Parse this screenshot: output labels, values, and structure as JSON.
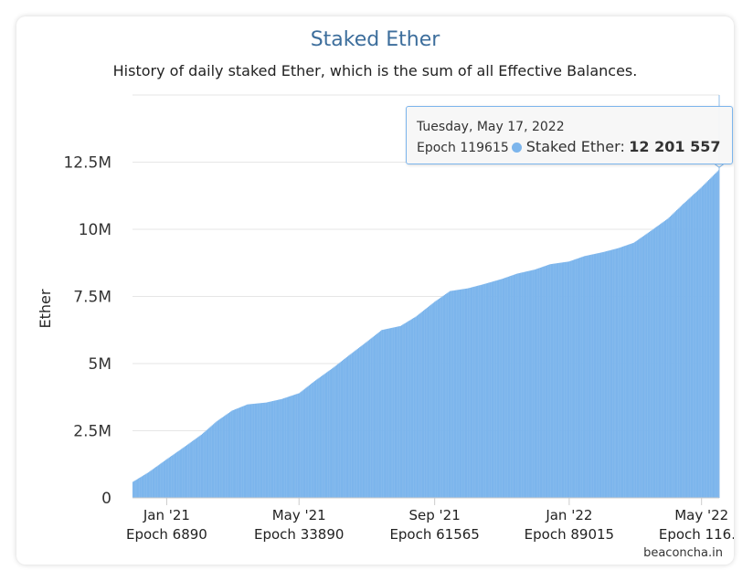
{
  "chart": {
    "title": "Staked Ether",
    "subtitle": "History of daily staked Ether, which is the sum of all Effective Balances.",
    "credit": "beaconcha.in"
  },
  "tooltip": {
    "date": "Tuesday, May 17, 2022",
    "epoch": "Epoch 119615",
    "label": "Staked Ether:",
    "value": "12 201 557"
  },
  "colors": {
    "series": "#7cb5ec",
    "title": "#3d6e9c"
  },
  "chart_data": {
    "type": "bar",
    "title": "Staked Ether",
    "subtitle": "History of daily staked Ether, which is the sum of all Effective Balances.",
    "ylabel": "Ether",
    "xlabel": "",
    "ylim": [
      0,
      15000000
    ],
    "y_ticks": [
      0,
      2500000,
      5000000,
      7500000,
      10000000,
      12500000
    ],
    "y_tick_labels": [
      "0",
      "2.5M",
      "5M",
      "7.5M",
      "10M",
      "12.5M"
    ],
    "x_tick_labels": [
      {
        "line1": "Jan '21",
        "line2": "Epoch 6890"
      },
      {
        "line1": "May '21",
        "line2": "Epoch 33890"
      },
      {
        "line1": "Sep '21",
        "line2": "Epoch 61565"
      },
      {
        "line1": "Jan '22",
        "line2": "Epoch 89015"
      },
      {
        "line1": "May '22",
        "line2": "Epoch 116..."
      }
    ],
    "x_range": [
      "2020-12-01",
      "2022-05-17"
    ],
    "x_ticks": [
      "2021-01-01",
      "2021-05-01",
      "2021-09-01",
      "2022-01-01",
      "2022-05-01"
    ],
    "series": [
      {
        "name": "Staked Ether",
        "points": [
          [
            "2020-12-01",
            600000
          ],
          [
            "2020-12-15",
            950000
          ],
          [
            "2021-01-01",
            1450000
          ],
          [
            "2021-01-15",
            1850000
          ],
          [
            "2021-02-01",
            2350000
          ],
          [
            "2021-02-15",
            2850000
          ],
          [
            "2021-03-01",
            3250000
          ],
          [
            "2021-03-15",
            3480000
          ],
          [
            "2021-04-01",
            3550000
          ],
          [
            "2021-04-15",
            3680000
          ],
          [
            "2021-05-01",
            3900000
          ],
          [
            "2021-05-15",
            4350000
          ],
          [
            "2021-06-01",
            4850000
          ],
          [
            "2021-06-15",
            5300000
          ],
          [
            "2021-07-01",
            5800000
          ],
          [
            "2021-07-15",
            6250000
          ],
          [
            "2021-08-01",
            6400000
          ],
          [
            "2021-08-15",
            6750000
          ],
          [
            "2021-09-01",
            7300000
          ],
          [
            "2021-09-15",
            7700000
          ],
          [
            "2021-10-01",
            7800000
          ],
          [
            "2021-10-15",
            7950000
          ],
          [
            "2021-11-01",
            8150000
          ],
          [
            "2021-11-15",
            8350000
          ],
          [
            "2021-12-01",
            8500000
          ],
          [
            "2021-12-15",
            8700000
          ],
          [
            "2022-01-01",
            8800000
          ],
          [
            "2022-01-15",
            9000000
          ],
          [
            "2022-02-01",
            9150000
          ],
          [
            "2022-02-15",
            9300000
          ],
          [
            "2022-03-01",
            9500000
          ],
          [
            "2022-03-15",
            9900000
          ],
          [
            "2022-04-01",
            10400000
          ],
          [
            "2022-04-15",
            10950000
          ],
          [
            "2022-05-01",
            11550000
          ],
          [
            "2022-05-17",
            12201557
          ]
        ]
      }
    ],
    "grid": true,
    "legend": "none"
  }
}
